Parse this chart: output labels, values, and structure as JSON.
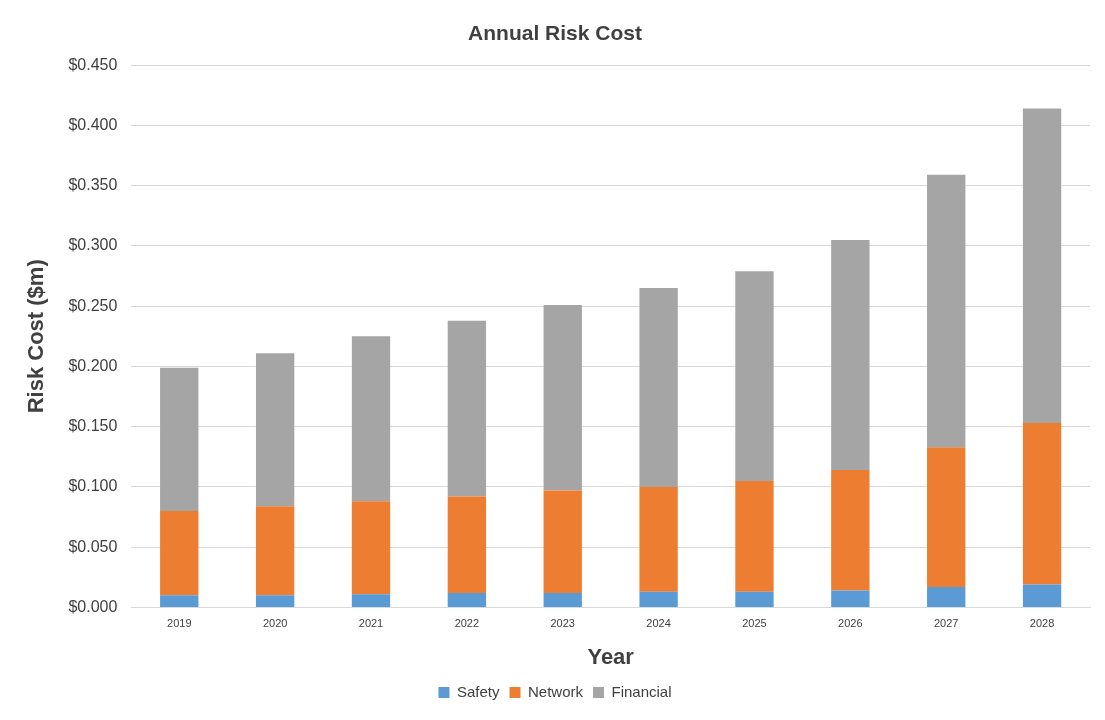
{
  "chart_data": {
    "type": "bar",
    "title": "Annual Risk Cost",
    "xlabel": "Year",
    "ylabel": "Risk Cost ($m)",
    "categories": [
      "2019",
      "2020",
      "2021",
      "2022",
      "2023",
      "2024",
      "2025",
      "2026",
      "2027",
      "2028"
    ],
    "stacked": true,
    "series": [
      {
        "name": "Safety",
        "color": "#5b9bd5",
        "values": [
          0.01,
          0.01,
          0.011,
          0.012,
          0.012,
          0.013,
          0.013,
          0.014,
          0.017,
          0.019
        ]
      },
      {
        "name": "Network",
        "color": "#ed7d31",
        "values": [
          0.07,
          0.074,
          0.077,
          0.08,
          0.085,
          0.087,
          0.092,
          0.1,
          0.116,
          0.134
        ]
      },
      {
        "name": "Financial",
        "color": "#a5a5a5",
        "values": [
          0.119,
          0.127,
          0.137,
          0.146,
          0.154,
          0.165,
          0.174,
          0.191,
          0.226,
          0.261
        ]
      }
    ],
    "ylim": [
      0,
      0.45
    ],
    "yticks": [
      {
        "value": 0,
        "label": "$0.000"
      },
      {
        "value": 0.05,
        "label": "$0.050"
      },
      {
        "value": 0.1,
        "label": "$0.100"
      },
      {
        "value": 0.15,
        "label": "$0.150"
      },
      {
        "value": 0.2,
        "label": "$0.200"
      },
      {
        "value": 0.25,
        "label": "$0.250"
      },
      {
        "value": 0.3,
        "label": "$0.300"
      },
      {
        "value": 0.35,
        "label": "$0.350"
      },
      {
        "value": 0.4,
        "label": "$0.400"
      },
      {
        "value": 0.45,
        "label": "$0.450"
      }
    ],
    "grid": "y",
    "legend": "bottom"
  }
}
